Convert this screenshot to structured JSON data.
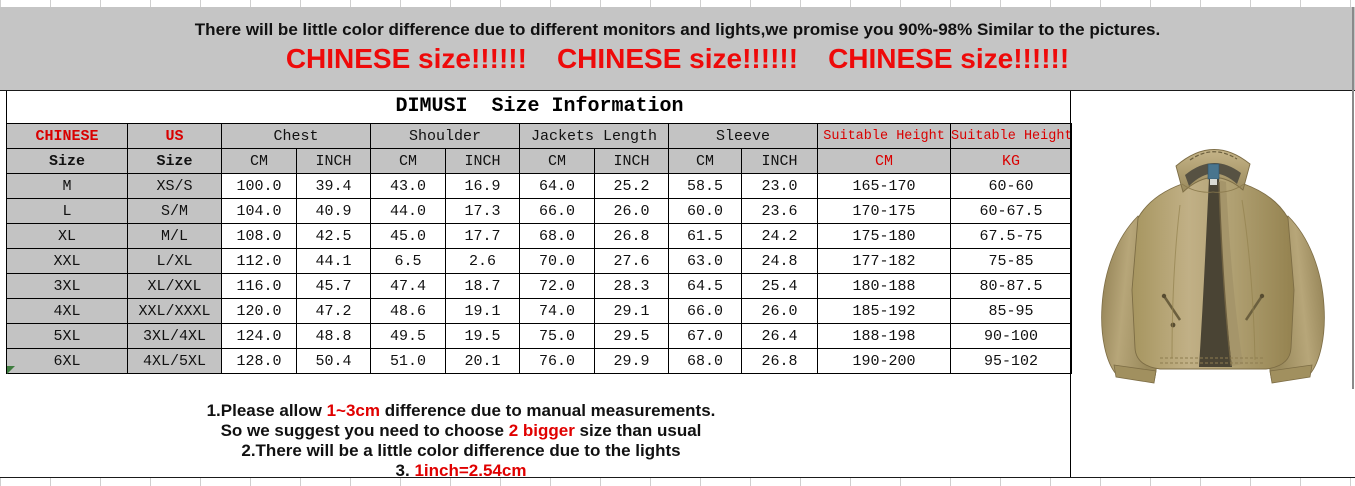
{
  "banner": {
    "notice": "There will be little color difference due to different monitors and lights,we promise you 90%-98%  Similar to the pictures.",
    "warnings": [
      "CHINESE size!!!!!!",
      "CHINESE size!!!!!!",
      "CHINESE size!!!!!!"
    ]
  },
  "title": "DIMUSI  Size Information",
  "table": {
    "header_row1": [
      {
        "label": "CHINESE",
        "span": 1,
        "red": true,
        "bold": true
      },
      {
        "label": "US",
        "span": 1,
        "red": true,
        "bold": true
      },
      {
        "label": "Chest",
        "span": 2
      },
      {
        "label": "Shoulder",
        "span": 2
      },
      {
        "label": "Jackets Length",
        "span": 2
      },
      {
        "label": "Sleeve",
        "span": 2
      },
      {
        "label": "Suitable Height",
        "span": 1,
        "red": true,
        "small": true
      },
      {
        "label": "Suitable Height",
        "span": 1,
        "red": true,
        "small": true
      }
    ],
    "header_row2": [
      {
        "label": "Size",
        "bold": true
      },
      {
        "label": "Size",
        "bold": true
      },
      {
        "label": "CM"
      },
      {
        "label": "INCH"
      },
      {
        "label": "CM"
      },
      {
        "label": "INCH"
      },
      {
        "label": "CM"
      },
      {
        "label": "INCH"
      },
      {
        "label": "CM"
      },
      {
        "label": "INCH"
      },
      {
        "label": "CM",
        "red": true
      },
      {
        "label": "KG",
        "red": true
      }
    ],
    "rows": [
      [
        "M",
        "XS/S",
        "100.0",
        "39.4",
        "43.0",
        "16.9",
        "64.0",
        "25.2",
        "58.5",
        "23.0",
        "165-170",
        "60-60"
      ],
      [
        "L",
        "S/M",
        "104.0",
        "40.9",
        "44.0",
        "17.3",
        "66.0",
        "26.0",
        "60.0",
        "23.6",
        "170-175",
        "60-67.5"
      ],
      [
        "XL",
        "M/L",
        "108.0",
        "42.5",
        "45.0",
        "17.7",
        "68.0",
        "26.8",
        "61.5",
        "24.2",
        "175-180",
        "67.5-75"
      ],
      [
        "XXL",
        "L/XL",
        "112.0",
        "44.1",
        "6.5",
        "2.6",
        "70.0",
        "27.6",
        "63.0",
        "24.8",
        "177-182",
        "75-85"
      ],
      [
        "3XL",
        "XL/XXL",
        "116.0",
        "45.7",
        "47.4",
        "18.7",
        "72.0",
        "28.3",
        "64.5",
        "25.4",
        "180-188",
        "80-87.5"
      ],
      [
        "4XL",
        "XXL/XXXL",
        "120.0",
        "47.2",
        "48.6",
        "19.1",
        "74.0",
        "29.1",
        "66.0",
        "26.0",
        "185-192",
        "85-95"
      ],
      [
        "5XL",
        "3XL/4XL",
        "124.0",
        "48.8",
        "49.5",
        "19.5",
        "75.0",
        "29.5",
        "67.0",
        "26.4",
        "188-198",
        "90-100"
      ],
      [
        "6XL",
        "4XL/5XL",
        "128.0",
        "50.4",
        "51.0",
        "20.1",
        "76.0",
        "29.9",
        "68.0",
        "26.8",
        "190-200",
        "95-102"
      ]
    ]
  },
  "notes": [
    {
      "segments": [
        {
          "t": "1.Please allow ",
          "red": false
        },
        {
          "t": "1~3cm",
          "red": true
        },
        {
          "t": " difference due to manual measurements.",
          "red": false
        }
      ]
    },
    {
      "segments": [
        {
          "t": "So we suggest you need to choose ",
          "red": false
        },
        {
          "t": "2 bigger",
          "red": true
        },
        {
          "t": " size than usual",
          "red": false
        }
      ]
    },
    {
      "segments": [
        {
          "t": "2.There will be a little color difference due to the lights",
          "red": false
        }
      ]
    },
    {
      "segments": [
        {
          "t": "3. ",
          "red": false
        },
        {
          "t": "1inch=2.54cm",
          "red": true
        }
      ]
    }
  ],
  "product_image": {
    "description": "khaki stand-collar jacket"
  },
  "colors": {
    "banner_gray": "#c5c5c5",
    "header_gray": "#c3c3c3",
    "warning_red": "#ee0a0a",
    "table_red": "#d90000",
    "notes_red": "#e00000",
    "jacket_khaki": "#b2a173"
  }
}
